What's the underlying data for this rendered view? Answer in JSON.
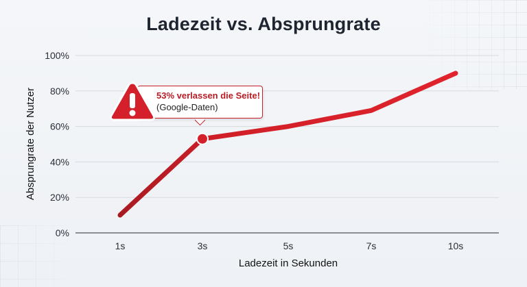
{
  "chart_data": {
    "type": "line",
    "title": "Ladezeit vs. Absprungrate",
    "xlabel": "Ladezeit in Sekunden",
    "ylabel": "Absprungrate der Nutzer",
    "categories": [
      "1s",
      "3s",
      "5s",
      "7s",
      "10s"
    ],
    "series": [
      {
        "name": "Absprungrate",
        "values": [
          10,
          53,
          60,
          69,
          90
        ],
        "color": "#d4202a"
      }
    ],
    "ylim": [
      0,
      100
    ],
    "yticks": [
      "0%",
      "20%",
      "40%",
      "60%",
      "80%",
      "100%"
    ],
    "grid": true,
    "legend": "none",
    "annotation": {
      "point": "3s",
      "value": 53,
      "headline": "53% verlassen die Seite!",
      "subtext": "(Google-Daten)",
      "icon": "warning-triangle-icon"
    }
  },
  "colors": {
    "line_start": "#b51c24",
    "line_end": "#e0232c",
    "accent": "#d4202a",
    "title": "#1e2530"
  }
}
